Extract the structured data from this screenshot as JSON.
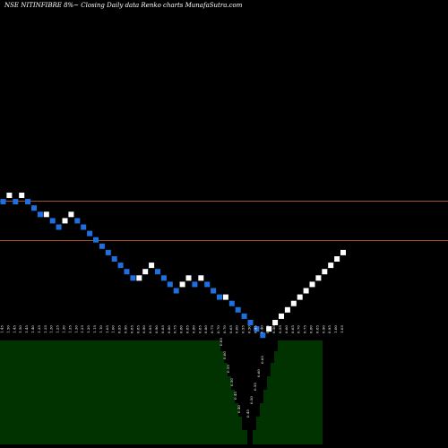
{
  "title": "NSE NITINFIBRE 8%~ Closing Daily data  Renko  charts MunafaSutra.com",
  "colors": {
    "background": "#000000",
    "up_brick": "#ffffff",
    "down_brick": "#1e6fe0",
    "reference_line": "#a0522d",
    "volume_area": "#003300"
  },
  "chart_data": {
    "type": "renko",
    "bricks": [
      {
        "dir": "down",
        "top": 1.45
      },
      {
        "dir": "up",
        "top": 1.5
      },
      {
        "dir": "down",
        "top": 1.45
      },
      {
        "dir": "up",
        "top": 1.5
      },
      {
        "dir": "down",
        "top": 1.45
      },
      {
        "dir": "down",
        "top": 1.4
      },
      {
        "dir": "down",
        "top": 1.35
      },
      {
        "dir": "up",
        "top": 1.35
      },
      {
        "dir": "down",
        "top": 1.3
      },
      {
        "dir": "down",
        "top": 1.25
      },
      {
        "dir": "up",
        "top": 1.3
      },
      {
        "dir": "up",
        "top": 1.35
      },
      {
        "dir": "down",
        "top": 1.3
      },
      {
        "dir": "down",
        "top": 1.25
      },
      {
        "dir": "down",
        "top": 1.2
      },
      {
        "dir": "down",
        "top": 1.15
      },
      {
        "dir": "down",
        "top": 1.1
      },
      {
        "dir": "down",
        "top": 1.05
      },
      {
        "dir": "down",
        "top": 1.0
      },
      {
        "dir": "down",
        "top": 0.95
      },
      {
        "dir": "down",
        "top": 0.9
      },
      {
        "dir": "down",
        "top": 0.85
      },
      {
        "dir": "up",
        "top": 0.85
      },
      {
        "dir": "up",
        "top": 0.9
      },
      {
        "dir": "up",
        "top": 0.95
      },
      {
        "dir": "down",
        "top": 0.9
      },
      {
        "dir": "down",
        "top": 0.85
      },
      {
        "dir": "down",
        "top": 0.8
      },
      {
        "dir": "down",
        "top": 0.75
      },
      {
        "dir": "up",
        "top": 0.8
      },
      {
        "dir": "up",
        "top": 0.85
      },
      {
        "dir": "down",
        "top": 0.8
      },
      {
        "dir": "up",
        "top": 0.85
      },
      {
        "dir": "down",
        "top": 0.8
      },
      {
        "dir": "down",
        "top": 0.75
      },
      {
        "dir": "down",
        "top": 0.7
      },
      {
        "dir": "up",
        "top": 0.7
      },
      {
        "dir": "down",
        "top": 0.65
      },
      {
        "dir": "down",
        "top": 0.6
      },
      {
        "dir": "down",
        "top": 0.55
      },
      {
        "dir": "down",
        "top": 0.5
      },
      {
        "dir": "down",
        "top": 0.45
      },
      {
        "dir": "down",
        "top": 0.4
      },
      {
        "dir": "up",
        "top": 0.45
      },
      {
        "dir": "up",
        "top": 0.5
      },
      {
        "dir": "up",
        "top": 0.55
      },
      {
        "dir": "up",
        "top": 0.6
      },
      {
        "dir": "up",
        "top": 0.65
      },
      {
        "dir": "up",
        "top": 0.7
      },
      {
        "dir": "up",
        "top": 0.75
      },
      {
        "dir": "up",
        "top": 0.8
      },
      {
        "dir": "up",
        "top": 0.85
      },
      {
        "dir": "up",
        "top": 0.9
      },
      {
        "dir": "up",
        "top": 0.95
      },
      {
        "dir": "up",
        "top": 1.0
      },
      {
        "dir": "up",
        "top": 1.05
      }
    ],
    "reference_lines": [
      1.44,
      1.13
    ],
    "price_labels": [
      "1.45",
      "1.50",
      "1.45",
      "1.50",
      "1.45",
      "1.40",
      "1.35",
      "1.35",
      "1.30",
      "1.25",
      "1.30",
      "1.35",
      "1.30",
      "1.25",
      "1.20",
      "1.15",
      "1.10",
      "1.05",
      "1.00",
      "0.95",
      "0.90",
      "0.85",
      "0.85",
      "0.90",
      "0.95",
      "0.90",
      "0.85",
      "0.80",
      "0.75",
      "0.80",
      "0.85",
      "0.80",
      "0.85",
      "0.80",
      "0.75",
      "0.70",
      "0.70",
      "0.65",
      "0.60",
      "0.55",
      "0.50",
      "0.45",
      "0.40",
      "0.45",
      "0.50",
      "0.55",
      "0.60",
      "0.65",
      "0.70",
      "0.75",
      "0.80",
      "0.85",
      "0.90",
      "0.95",
      "1.00",
      "1.05"
    ],
    "funnel_labels": [
      {
        "text": "0.65",
        "side": "left"
      },
      {
        "text": "0.60",
        "side": "left"
      },
      {
        "text": "0.55",
        "side": "left"
      },
      {
        "text": "0.50",
        "side": "left"
      },
      {
        "text": "0.45",
        "side": "left"
      },
      {
        "text": "0.40",
        "side": "left"
      },
      {
        "text": "0.45",
        "side": "right"
      },
      {
        "text": "0.50",
        "side": "right"
      },
      {
        "text": "0.55",
        "side": "right"
      },
      {
        "text": "0.60",
        "side": "right"
      },
      {
        "text": "0.65",
        "side": "right"
      }
    ],
    "xlabel": "",
    "ylabel": ""
  }
}
